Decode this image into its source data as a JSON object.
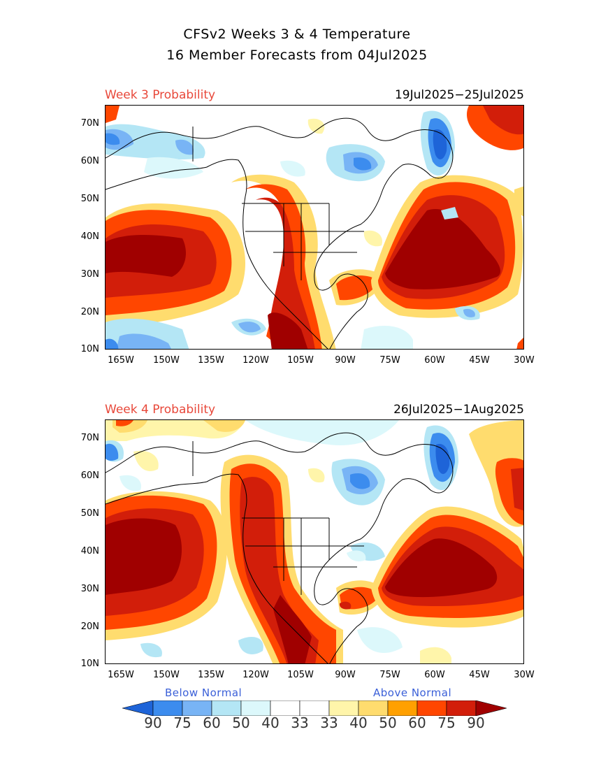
{
  "title": {
    "line1": "CFSv2 Weeks 3 & 4 Temperature",
    "line2": "16 Member Forecasts from 04Jul2025"
  },
  "panels": [
    {
      "label": "Week 3 Probability",
      "dates": "19Jul2025−25Jul2025"
    },
    {
      "label": "Week 4 Probability",
      "dates": "26Jul2025−1Aug2025"
    }
  ],
  "axes": {
    "lat_labels": [
      "70N",
      "60N",
      "50N",
      "40N",
      "30N",
      "20N",
      "10N"
    ],
    "lon_labels": [
      "165W",
      "150W",
      "135W",
      "120W",
      "105W",
      "90W",
      "75W",
      "60W",
      "45W",
      "30W"
    ],
    "lat_range": [
      10,
      75
    ],
    "lon_range": [
      -170,
      -30
    ]
  },
  "legend": {
    "below_label": "Below Normal",
    "above_label": "Above Normal",
    "values": [
      "90",
      "75",
      "60",
      "50",
      "40",
      "33",
      "33",
      "40",
      "50",
      "60",
      "75",
      "90"
    ],
    "colors": [
      "#1e64d8",
      "#3c8cee",
      "#78b4f5",
      "#b4e6f5",
      "#dcf8fb",
      "#ffffff",
      "#ffffff",
      "#fff5aa",
      "#ffdc6e",
      "#ffa000",
      "#ff4600",
      "#d21e0a",
      "#a00000"
    ]
  },
  "colors": {
    "above_dark": "#a00000",
    "above_red": "#d21e0a",
    "above_orange": "#ff4600",
    "above_amber": "#ffa000",
    "above_yellow": "#ffdc6e",
    "above_pale": "#fff5aa",
    "below_pale": "#dcf8fb",
    "below_cyan": "#b4e6f5",
    "below_light": "#78b4f5",
    "below_mid": "#3c8cee",
    "below_dark": "#1e64d8",
    "title_red": "#e8483a",
    "legend_blue": "#3a5fd8"
  }
}
